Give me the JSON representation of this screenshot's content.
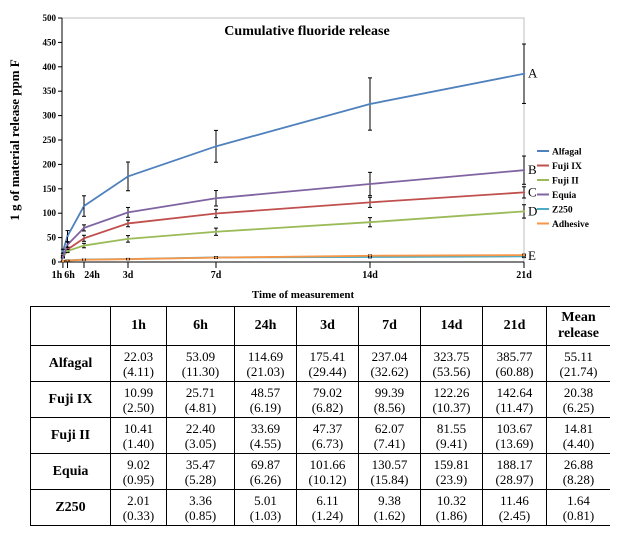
{
  "chart_data": {
    "type": "line",
    "title": "Cumulative fluoride release",
    "xlabel": "Time of measurement",
    "ylabel": "1 g of material release  ppm F",
    "categories": [
      "1h",
      "6h",
      "24h",
      "3d",
      "7d",
      "14d",
      "21d"
    ],
    "x_hours": [
      1,
      6,
      24,
      72,
      168,
      336,
      504
    ],
    "ylim": [
      0,
      500
    ],
    "yticks": [
      0,
      50,
      100,
      150,
      200,
      250,
      300,
      350,
      400,
      450,
      500
    ],
    "grid": false,
    "legend_position": "right",
    "series": [
      {
        "name": "Alfagal",
        "color": "#4f81bd",
        "values": [
          22.03,
          53.09,
          114.69,
          175.41,
          237.04,
          323.75,
          385.77
        ],
        "errors": [
          4.11,
          11.3,
          21.03,
          29.44,
          32.62,
          53.56,
          60.88
        ]
      },
      {
        "name": "Fuji IX",
        "color": "#c0504d",
        "values": [
          10.99,
          25.71,
          48.57,
          79.02,
          99.39,
          122.26,
          142.64
        ],
        "errors": [
          2.5,
          4.81,
          6.19,
          6.82,
          8.56,
          10.37,
          11.47
        ]
      },
      {
        "name": "Fuji II",
        "color": "#9bbb59",
        "values": [
          10.41,
          22.4,
          33.69,
          47.37,
          62.07,
          81.55,
          103.67
        ],
        "errors": [
          1.4,
          3.05,
          4.55,
          6.73,
          7.41,
          9.41,
          13.69
        ]
      },
      {
        "name": "Equia",
        "color": "#8064a2",
        "values": [
          9.02,
          35.47,
          69.87,
          101.66,
          130.57,
          159.81,
          188.17
        ],
        "errors": [
          0.95,
          5.28,
          6.26,
          10.12,
          15.84,
          23.9,
          28.97
        ]
      },
      {
        "name": "Z250",
        "color": "#4bacc6",
        "values": [
          2.01,
          3.36,
          5.01,
          6.11,
          9.38,
          10.32,
          11.46
        ],
        "errors": [
          0.33,
          0.85,
          1.03,
          1.24,
          1.62,
          1.86,
          2.45
        ]
      },
      {
        "name": "Adhesive",
        "color": "#f79646",
        "values": [
          1.9,
          3.1,
          4.6,
          5.8,
          8.9,
          12.8,
          14.1
        ],
        "errors": [
          0.3,
          0.6,
          0.9,
          1.1,
          1.4,
          1.7,
          2.0
        ]
      }
    ],
    "annotations": [
      {
        "label": "A",
        "series": "Alfagal"
      },
      {
        "label": "B",
        "series": "Equia"
      },
      {
        "label": "C",
        "series": "Fuji IX"
      },
      {
        "label": "D",
        "series": "Fuji II"
      },
      {
        "label": "E",
        "series": "Z250"
      }
    ]
  },
  "table": {
    "headers": [
      "",
      "1h",
      "6h",
      "24h",
      "3d",
      "7d",
      "14d",
      "21d",
      "Mean release"
    ],
    "rows": [
      {
        "name": "Alfagal",
        "cells": [
          [
            "22.03",
            "(4.11)"
          ],
          [
            "53.09",
            "(11.30)"
          ],
          [
            "114.69",
            "(21.03)"
          ],
          [
            "175.41",
            "(29.44)"
          ],
          [
            "237.04",
            "(32.62)"
          ],
          [
            "323.75",
            "(53.56)"
          ],
          [
            "385.77",
            "(60.88)"
          ],
          [
            "55.11",
            "(21.74)"
          ]
        ]
      },
      {
        "name": "Fuji IX",
        "cells": [
          [
            "10.99",
            "(2.50)"
          ],
          [
            "25.71",
            "(4.81)"
          ],
          [
            "48.57",
            "(6.19)"
          ],
          [
            "79.02",
            "(6.82)"
          ],
          [
            "99.39",
            "(8.56)"
          ],
          [
            "122.26",
            "(10.37)"
          ],
          [
            "142.64",
            "(11.47)"
          ],
          [
            "20.38",
            "(6.25)"
          ]
        ]
      },
      {
        "name": "Fuji II",
        "cells": [
          [
            "10.41",
            "(1.40)"
          ],
          [
            "22.40",
            "(3.05)"
          ],
          [
            "33.69",
            "(4.55)"
          ],
          [
            "47.37",
            "(6.73)"
          ],
          [
            "62.07",
            "(7.41)"
          ],
          [
            "81.55",
            "(9.41)"
          ],
          [
            "103.67",
            "(13.69)"
          ],
          [
            "14.81",
            "(4.40)"
          ]
        ]
      },
      {
        "name": "Equia",
        "cells": [
          [
            "9.02",
            "(0.95)"
          ],
          [
            "35.47",
            "(5.28)"
          ],
          [
            "69.87",
            "(6.26)"
          ],
          [
            "101.66",
            "(10.12)"
          ],
          [
            "130.57",
            "(15.84)"
          ],
          [
            "159.81",
            "(23.9)"
          ],
          [
            "188.17",
            "(28.97)"
          ],
          [
            "26.88",
            "(8.28)"
          ]
        ]
      },
      {
        "name": "Z250",
        "cells": [
          [
            "2.01",
            "(0.33)"
          ],
          [
            "3.36",
            "(0.85)"
          ],
          [
            "5.01",
            "(1.03)"
          ],
          [
            "6.11",
            "(1.24)"
          ],
          [
            "9.38",
            "(1.62)"
          ],
          [
            "10.32",
            "(1.86)"
          ],
          [
            "11.46",
            "(2.45)"
          ],
          [
            "1.64",
            "(0.81)"
          ]
        ]
      }
    ]
  }
}
